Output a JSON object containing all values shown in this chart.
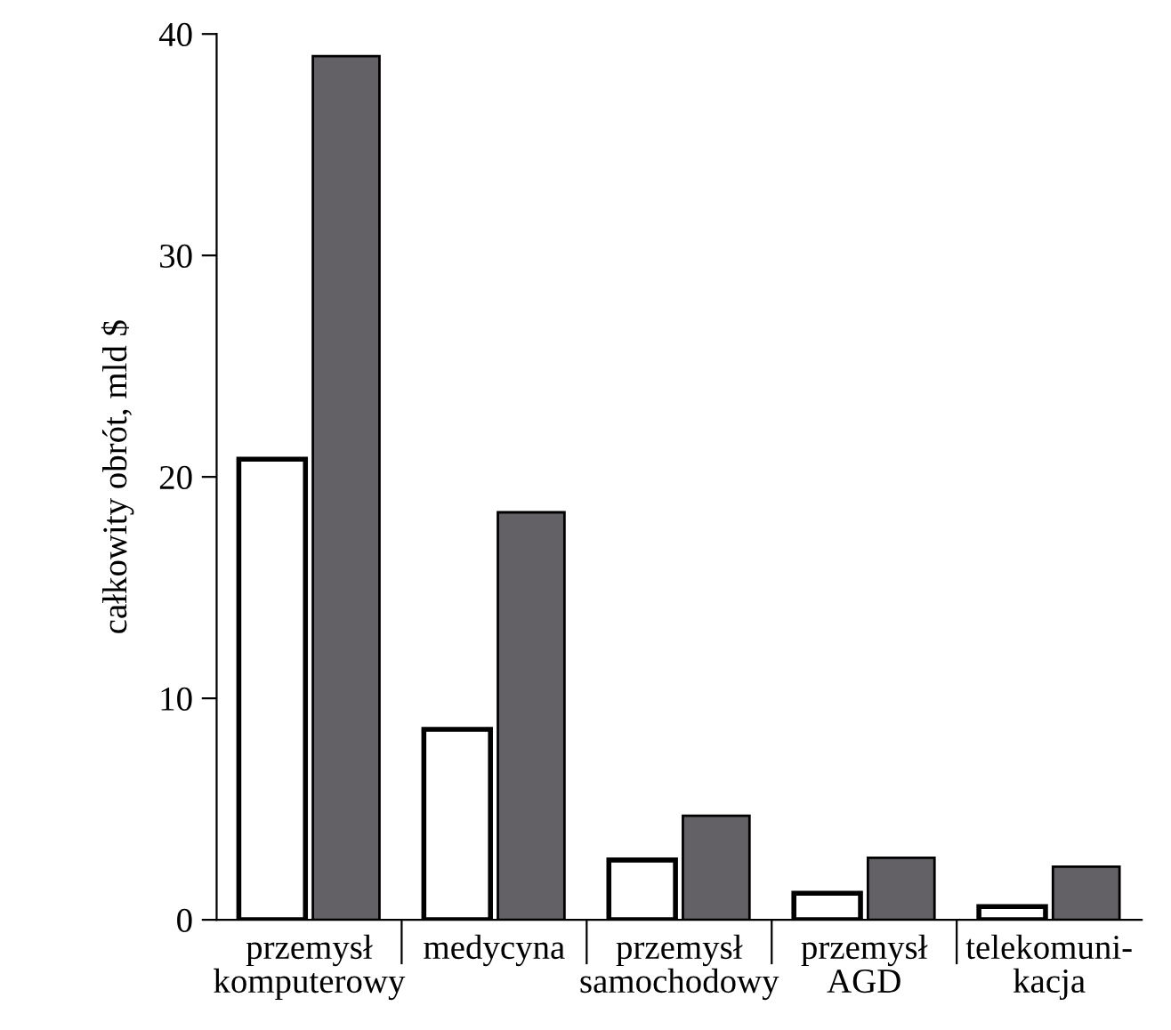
{
  "chart_data": {
    "type": "bar",
    "ylabel": "całkowity obrót, mld $",
    "categories": [
      "przemysł\nkomputerowy",
      "medycyna",
      "przemysł\nsamochodowy",
      "przemysł\nAGD",
      "telekomuni-\nkacja"
    ],
    "series": [
      {
        "color": "#ffffff",
        "values": [
          20.8,
          8.6,
          2.7,
          1.2,
          0.6
        ]
      },
      {
        "color": "#636066",
        "values": [
          39.0,
          18.4,
          4.7,
          2.8,
          2.4
        ]
      }
    ],
    "ylim": [
      0,
      40
    ],
    "yticks": [
      0,
      10,
      20,
      30,
      40
    ],
    "grid": false
  }
}
